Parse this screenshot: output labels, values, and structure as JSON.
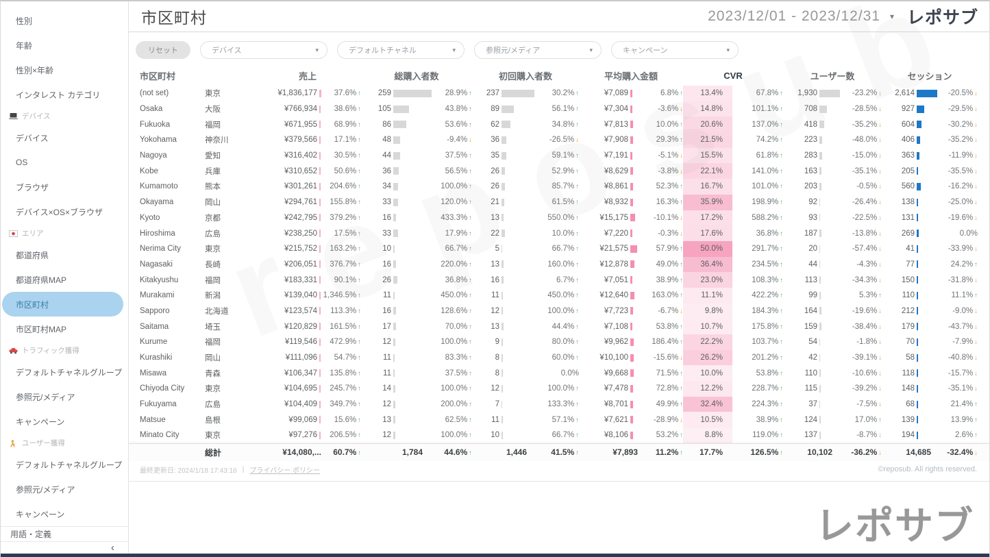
{
  "header": {
    "title": "市区町村",
    "date_range": "2023/12/01 - 2023/12/31",
    "logo": "レポサブ"
  },
  "sidebar": {
    "items": [
      {
        "type": "item",
        "label": "性別"
      },
      {
        "type": "item",
        "label": "年齢"
      },
      {
        "type": "item",
        "label": "性別×年齢"
      },
      {
        "type": "item",
        "label": "インタレスト カテゴリ"
      },
      {
        "type": "section",
        "icon": "laptop-icon",
        "label": "デバイス"
      },
      {
        "type": "item",
        "label": "デバイス"
      },
      {
        "type": "item",
        "label": "OS"
      },
      {
        "type": "item",
        "label": "ブラウザ"
      },
      {
        "type": "item",
        "label": "デバイス×OS×ブラウザ"
      },
      {
        "type": "section",
        "icon": "japan-flag-icon",
        "label": "エリア"
      },
      {
        "type": "item",
        "label": "都道府県"
      },
      {
        "type": "item",
        "label": "都道府県MAP"
      },
      {
        "type": "item",
        "label": "市区町村",
        "selected": true
      },
      {
        "type": "item",
        "label": "市区町村MAP"
      },
      {
        "type": "section",
        "icon": "car-icon",
        "label": "トラフィック獲得"
      },
      {
        "type": "item",
        "label": "デフォルトチャネルグループ"
      },
      {
        "type": "item",
        "label": "参照元/メディア"
      },
      {
        "type": "item",
        "label": "キャンペーン"
      },
      {
        "type": "section",
        "icon": "person-icon",
        "label": "ユーザー獲得"
      },
      {
        "type": "item",
        "label": "デフォルトチャネルグループ"
      },
      {
        "type": "item",
        "label": "参照元/メディア"
      },
      {
        "type": "item",
        "label": "キャンペーン"
      }
    ],
    "footer_item": "用語・定義",
    "collapse_icon": "‹"
  },
  "filters": {
    "reset_label": "リセット",
    "dropdowns": [
      "デバイス",
      "デフォルトチャネル",
      "参照元/メディア",
      "キャンペーン"
    ]
  },
  "table": {
    "columns": [
      "市区町村",
      "売上",
      "総購入者数",
      "初回購入者数",
      "平均購入金額",
      "CVR",
      "ユーザー数",
      "セッション"
    ],
    "rows": [
      {
        "name": "(not set)",
        "pref": "東京",
        "sales": "¥1,836,177",
        "sales_pct": "37.6%",
        "sales_dir": "up",
        "buyers": "259",
        "buyers_pct": "28.9%",
        "buyers_dir": "up",
        "first": "237",
        "first_pct": "30.2%",
        "first_dir": "up",
        "avg": "¥7,089",
        "avg_pct": "6.8%",
        "avg_dir": "up",
        "cvr": "13.4%",
        "cvr_pct": "67.8%",
        "cvr_dir": "up",
        "users": "1,930",
        "users_pct": "-23.2%",
        "users_dir": "down",
        "sessions": "2,614",
        "sessions_pct": "-20.5%",
        "sessions_dir": "down"
      },
      {
        "name": "Osaka",
        "pref": "大阪",
        "sales": "¥766,934",
        "sales_pct": "38.6%",
        "sales_dir": "up",
        "buyers": "105",
        "buyers_pct": "43.8%",
        "buyers_dir": "up",
        "first": "89",
        "first_pct": "56.1%",
        "first_dir": "up",
        "avg": "¥7,304",
        "avg_pct": "-3.6%",
        "avg_dir": "down",
        "cvr": "14.8%",
        "cvr_pct": "101.1%",
        "cvr_dir": "up",
        "users": "708",
        "users_pct": "-28.5%",
        "users_dir": "down",
        "sessions": "927",
        "sessions_pct": "-29.5%",
        "sessions_dir": "down"
      },
      {
        "name": "Fukuoka",
        "pref": "福岡",
        "sales": "¥671,955",
        "sales_pct": "68.9%",
        "sales_dir": "up",
        "buyers": "86",
        "buyers_pct": "53.6%",
        "buyers_dir": "up",
        "first": "62",
        "first_pct": "34.8%",
        "first_dir": "up",
        "avg": "¥7,813",
        "avg_pct": "10.0%",
        "avg_dir": "up",
        "cvr": "20.6%",
        "cvr_pct": "137.0%",
        "cvr_dir": "up",
        "users": "418",
        "users_pct": "-35.2%",
        "users_dir": "down",
        "sessions": "604",
        "sessions_pct": "-30.2%",
        "sessions_dir": "down"
      },
      {
        "name": "Yokohama",
        "pref": "神奈川",
        "sales": "¥379,566",
        "sales_pct": "17.1%",
        "sales_dir": "up",
        "buyers": "48",
        "buyers_pct": "-9.4%",
        "buyers_dir": "down",
        "first": "36",
        "first_pct": "-26.5%",
        "first_dir": "down",
        "avg": "¥7,908",
        "avg_pct": "29.3%",
        "avg_dir": "up",
        "cvr": "21.5%",
        "cvr_pct": "74.2%",
        "cvr_dir": "up",
        "users": "223",
        "users_pct": "-48.0%",
        "users_dir": "down",
        "sessions": "406",
        "sessions_pct": "-35.2%",
        "sessions_dir": "down"
      },
      {
        "name": "Nagoya",
        "pref": "愛知",
        "sales": "¥316,402",
        "sales_pct": "30.5%",
        "sales_dir": "up",
        "buyers": "44",
        "buyers_pct": "37.5%",
        "buyers_dir": "up",
        "first": "35",
        "first_pct": "59.1%",
        "first_dir": "up",
        "avg": "¥7,191",
        "avg_pct": "-5.1%",
        "avg_dir": "down",
        "cvr": "15.5%",
        "cvr_pct": "61.8%",
        "cvr_dir": "up",
        "users": "283",
        "users_pct": "-15.0%",
        "users_dir": "down",
        "sessions": "363",
        "sessions_pct": "-11.9%",
        "sessions_dir": "down"
      },
      {
        "name": "Kobe",
        "pref": "兵庫",
        "sales": "¥310,652",
        "sales_pct": "50.6%",
        "sales_dir": "up",
        "buyers": "36",
        "buyers_pct": "56.5%",
        "buyers_dir": "up",
        "first": "26",
        "first_pct": "52.9%",
        "first_dir": "up",
        "avg": "¥8,629",
        "avg_pct": "-3.8%",
        "avg_dir": "down",
        "cvr": "22.1%",
        "cvr_pct": "141.0%",
        "cvr_dir": "up",
        "users": "163",
        "users_pct": "-35.1%",
        "users_dir": "down",
        "sessions": "205",
        "sessions_pct": "-35.5%",
        "sessions_dir": "down"
      },
      {
        "name": "Kumamoto",
        "pref": "熊本",
        "sales": "¥301,261",
        "sales_pct": "204.6%",
        "sales_dir": "up",
        "buyers": "34",
        "buyers_pct": "100.0%",
        "buyers_dir": "up",
        "first": "26",
        "first_pct": "85.7%",
        "first_dir": "up",
        "avg": "¥8,861",
        "avg_pct": "52.3%",
        "avg_dir": "up",
        "cvr": "16.7%",
        "cvr_pct": "101.0%",
        "cvr_dir": "up",
        "users": "203",
        "users_pct": "-0.5%",
        "users_dir": "down",
        "sessions": "560",
        "sessions_pct": "-16.2%",
        "sessions_dir": "down"
      },
      {
        "name": "Okayama",
        "pref": "岡山",
        "sales": "¥294,761",
        "sales_pct": "155.8%",
        "sales_dir": "up",
        "buyers": "33",
        "buyers_pct": "120.0%",
        "buyers_dir": "up",
        "first": "21",
        "first_pct": "61.5%",
        "first_dir": "up",
        "avg": "¥8,932",
        "avg_pct": "16.3%",
        "avg_dir": "up",
        "cvr": "35.9%",
        "cvr_pct": "198.9%",
        "cvr_dir": "up",
        "users": "92",
        "users_pct": "-26.4%",
        "users_dir": "down",
        "sessions": "138",
        "sessions_pct": "-25.0%",
        "sessions_dir": "down"
      },
      {
        "name": "Kyoto",
        "pref": "京都",
        "sales": "¥242,795",
        "sales_pct": "379.2%",
        "sales_dir": "up",
        "buyers": "16",
        "buyers_pct": "433.3%",
        "buyers_dir": "up",
        "first": "13",
        "first_pct": "550.0%",
        "first_dir": "up",
        "avg": "¥15,175",
        "avg_pct": "-10.1%",
        "avg_dir": "down",
        "cvr": "17.2%",
        "cvr_pct": "588.2%",
        "cvr_dir": "up",
        "users": "93",
        "users_pct": "-22.5%",
        "users_dir": "down",
        "sessions": "131",
        "sessions_pct": "-19.6%",
        "sessions_dir": "down"
      },
      {
        "name": "Hiroshima",
        "pref": "広島",
        "sales": "¥238,250",
        "sales_pct": "17.5%",
        "sales_dir": "up",
        "buyers": "33",
        "buyers_pct": "17.9%",
        "buyers_dir": "up",
        "first": "22",
        "first_pct": "10.0%",
        "first_dir": "up",
        "avg": "¥7,220",
        "avg_pct": "-0.3%",
        "avg_dir": "down",
        "cvr": "17.6%",
        "cvr_pct": "36.8%",
        "cvr_dir": "up",
        "users": "187",
        "users_pct": "-13.8%",
        "users_dir": "down",
        "sessions": "269",
        "sessions_pct": "0.0%",
        "sessions_dir": ""
      },
      {
        "name": "Nerima City",
        "pref": "東京",
        "sales": "¥215,752",
        "sales_pct": "163.2%",
        "sales_dir": "up",
        "buyers": "10",
        "buyers_pct": "66.7%",
        "buyers_dir": "up",
        "first": "5",
        "first_pct": "66.7%",
        "first_dir": "up",
        "avg": "¥21,575",
        "avg_pct": "57.9%",
        "avg_dir": "up",
        "cvr": "50.0%",
        "cvr_pct": "291.7%",
        "cvr_dir": "up",
        "users": "20",
        "users_pct": "-57.4%",
        "users_dir": "down",
        "sessions": "41",
        "sessions_pct": "-33.9%",
        "sessions_dir": "down"
      },
      {
        "name": "Nagasaki",
        "pref": "長崎",
        "sales": "¥206,051",
        "sales_pct": "376.7%",
        "sales_dir": "up",
        "buyers": "16",
        "buyers_pct": "220.0%",
        "buyers_dir": "up",
        "first": "13",
        "first_pct": "160.0%",
        "first_dir": "up",
        "avg": "¥12,878",
        "avg_pct": "49.0%",
        "avg_dir": "up",
        "cvr": "36.4%",
        "cvr_pct": "234.5%",
        "cvr_dir": "up",
        "users": "44",
        "users_pct": "-4.3%",
        "users_dir": "down",
        "sessions": "77",
        "sessions_pct": "24.2%",
        "sessions_dir": "up"
      },
      {
        "name": "Kitakyushu",
        "pref": "福岡",
        "sales": "¥183,331",
        "sales_pct": "90.1%",
        "sales_dir": "up",
        "buyers": "26",
        "buyers_pct": "36.8%",
        "buyers_dir": "up",
        "first": "16",
        "first_pct": "6.7%",
        "first_dir": "up",
        "avg": "¥7,051",
        "avg_pct": "38.9%",
        "avg_dir": "up",
        "cvr": "23.0%",
        "cvr_pct": "108.3%",
        "cvr_dir": "up",
        "users": "113",
        "users_pct": "-34.3%",
        "users_dir": "down",
        "sessions": "150",
        "sessions_pct": "-31.8%",
        "sessions_dir": "down"
      },
      {
        "name": "Murakami",
        "pref": "新潟",
        "sales": "¥139,040",
        "sales_pct": "1,346.5%",
        "sales_dir": "up",
        "buyers": "11",
        "buyers_pct": "450.0%",
        "buyers_dir": "up",
        "first": "11",
        "first_pct": "450.0%",
        "first_dir": "up",
        "avg": "¥12,640",
        "avg_pct": "163.0%",
        "avg_dir": "up",
        "cvr": "11.1%",
        "cvr_pct": "422.2%",
        "cvr_dir": "up",
        "users": "99",
        "users_pct": "5.3%",
        "users_dir": "up",
        "sessions": "110",
        "sessions_pct": "11.1%",
        "sessions_dir": "up"
      },
      {
        "name": "Sapporo",
        "pref": "北海道",
        "sales": "¥123,574",
        "sales_pct": "113.3%",
        "sales_dir": "up",
        "buyers": "16",
        "buyers_pct": "128.6%",
        "buyers_dir": "up",
        "first": "12",
        "first_pct": "100.0%",
        "first_dir": "up",
        "avg": "¥7,723",
        "avg_pct": "-6.7%",
        "avg_dir": "down",
        "cvr": "9.8%",
        "cvr_pct": "184.3%",
        "cvr_dir": "up",
        "users": "164",
        "users_pct": "-19.6%",
        "users_dir": "down",
        "sessions": "212",
        "sessions_pct": "-9.0%",
        "sessions_dir": "down"
      },
      {
        "name": "Saitama",
        "pref": "埼玉",
        "sales": "¥120,829",
        "sales_pct": "161.5%",
        "sales_dir": "up",
        "buyers": "17",
        "buyers_pct": "70.0%",
        "buyers_dir": "up",
        "first": "13",
        "first_pct": "44.4%",
        "first_dir": "up",
        "avg": "¥7,108",
        "avg_pct": "53.8%",
        "avg_dir": "up",
        "cvr": "10.7%",
        "cvr_pct": "175.8%",
        "cvr_dir": "up",
        "users": "159",
        "users_pct": "-38.4%",
        "users_dir": "down",
        "sessions": "179",
        "sessions_pct": "-43.7%",
        "sessions_dir": "down"
      },
      {
        "name": "Kurume",
        "pref": "福岡",
        "sales": "¥119,546",
        "sales_pct": "472.9%",
        "sales_dir": "up",
        "buyers": "12",
        "buyers_pct": "100.0%",
        "buyers_dir": "up",
        "first": "9",
        "first_pct": "80.0%",
        "first_dir": "up",
        "avg": "¥9,962",
        "avg_pct": "186.4%",
        "avg_dir": "up",
        "cvr": "22.2%",
        "cvr_pct": "103.7%",
        "cvr_dir": "up",
        "users": "54",
        "users_pct": "-1.8%",
        "users_dir": "down",
        "sessions": "70",
        "sessions_pct": "-7.9%",
        "sessions_dir": "down"
      },
      {
        "name": "Kurashiki",
        "pref": "岡山",
        "sales": "¥111,096",
        "sales_pct": "54.7%",
        "sales_dir": "up",
        "buyers": "11",
        "buyers_pct": "83.3%",
        "buyers_dir": "up",
        "first": "8",
        "first_pct": "60.0%",
        "first_dir": "up",
        "avg": "¥10,100",
        "avg_pct": "-15.6%",
        "avg_dir": "down",
        "cvr": "26.2%",
        "cvr_pct": "201.2%",
        "cvr_dir": "up",
        "users": "42",
        "users_pct": "-39.1%",
        "users_dir": "down",
        "sessions": "58",
        "sessions_pct": "-40.8%",
        "sessions_dir": "down"
      },
      {
        "name": "Misawa",
        "pref": "青森",
        "sales": "¥106,347",
        "sales_pct": "135.8%",
        "sales_dir": "up",
        "buyers": "11",
        "buyers_pct": "37.5%",
        "buyers_dir": "up",
        "first": "8",
        "first_pct": "0.0%",
        "first_dir": "",
        "avg": "¥9,668",
        "avg_pct": "71.5%",
        "avg_dir": "up",
        "cvr": "10.0%",
        "cvr_pct": "53.8%",
        "cvr_dir": "up",
        "users": "110",
        "users_pct": "-10.6%",
        "users_dir": "down",
        "sessions": "118",
        "sessions_pct": "-15.7%",
        "sessions_dir": "down"
      },
      {
        "name": "Chiyoda City",
        "pref": "東京",
        "sales": "¥104,695",
        "sales_pct": "245.7%",
        "sales_dir": "up",
        "buyers": "14",
        "buyers_pct": "100.0%",
        "buyers_dir": "up",
        "first": "12",
        "first_pct": "100.0%",
        "first_dir": "up",
        "avg": "¥7,478",
        "avg_pct": "72.8%",
        "avg_dir": "up",
        "cvr": "12.2%",
        "cvr_pct": "228.7%",
        "cvr_dir": "up",
        "users": "115",
        "users_pct": "-39.2%",
        "users_dir": "down",
        "sessions": "148",
        "sessions_pct": "-35.1%",
        "sessions_dir": "down"
      },
      {
        "name": "Fukuyama",
        "pref": "広島",
        "sales": "¥104,409",
        "sales_pct": "349.7%",
        "sales_dir": "up",
        "buyers": "12",
        "buyers_pct": "200.0%",
        "buyers_dir": "up",
        "first": "7",
        "first_pct": "133.3%",
        "first_dir": "up",
        "avg": "¥8,701",
        "avg_pct": "49.9%",
        "avg_dir": "up",
        "cvr": "32.4%",
        "cvr_pct": "224.3%",
        "cvr_dir": "up",
        "users": "37",
        "users_pct": "-7.5%",
        "users_dir": "down",
        "sessions": "68",
        "sessions_pct": "21.4%",
        "sessions_dir": "up"
      },
      {
        "name": "Matsue",
        "pref": "島根",
        "sales": "¥99,069",
        "sales_pct": "15.6%",
        "sales_dir": "up",
        "buyers": "13",
        "buyers_pct": "62.5%",
        "buyers_dir": "up",
        "first": "11",
        "first_pct": "57.1%",
        "first_dir": "up",
        "avg": "¥7,621",
        "avg_pct": "-28.9%",
        "avg_dir": "down",
        "cvr": "10.5%",
        "cvr_pct": "38.9%",
        "cvr_dir": "up",
        "users": "124",
        "users_pct": "17.0%",
        "users_dir": "up",
        "sessions": "139",
        "sessions_pct": "13.9%",
        "sessions_dir": "up"
      },
      {
        "name": "Minato City",
        "pref": "東京",
        "sales": "¥97,276",
        "sales_pct": "206.5%",
        "sales_dir": "up",
        "buyers": "12",
        "buyers_pct": "100.0%",
        "buyers_dir": "up",
        "first": "10",
        "first_pct": "66.7%",
        "first_dir": "up",
        "avg": "¥8,106",
        "avg_pct": "53.2%",
        "avg_dir": "up",
        "cvr": "8.8%",
        "cvr_pct": "119.0%",
        "cvr_dir": "up",
        "users": "137",
        "users_pct": "-8.7%",
        "users_dir": "down",
        "sessions": "194",
        "sessions_pct": "2.6%",
        "sessions_dir": "up"
      }
    ],
    "total": {
      "label": "総計",
      "sales": "¥14,080,...",
      "sales_pct": "60.7%",
      "sales_dir": "up",
      "buyers": "1,784",
      "buyers_pct": "44.6%",
      "buyers_dir": "up",
      "first": "1,446",
      "first_pct": "41.5%",
      "first_dir": "up",
      "avg": "¥7,893",
      "avg_pct": "11.2%",
      "avg_dir": "up",
      "cvr": "17.7%",
      "cvr_pct": "126.5%",
      "cvr_dir": "up",
      "users": "10,102",
      "users_pct": "-36.2%",
      "users_dir": "down",
      "sessions": "14,685",
      "sessions_pct": "-32.4%",
      "sessions_dir": "down"
    }
  },
  "footer": {
    "last_updated": "最終更新日: 2024/1/18 17:43:16",
    "privacy_link": "プライバシー ポリシー",
    "copyright": "©reposub. All rights reserved.",
    "watermark_logo": "レポサブ",
    "watermark_text": "reposub"
  },
  "glyphs": {
    "arrow_up": "↑",
    "arrow_down": "↓",
    "caret": "▾"
  },
  "colors": {
    "up_green": "#5cb85f",
    "down_orange": "#f79420",
    "bar_gray": "#d8d8d8",
    "bar_blue": "#1d78c7",
    "bar_pink_light": "#f7b1c6",
    "bar_pink": "#f48fb1",
    "heat_base_rgb": "236,64,122",
    "selected_blue": "#a9d3ef",
    "navy_bottom": "#2d3c53"
  }
}
